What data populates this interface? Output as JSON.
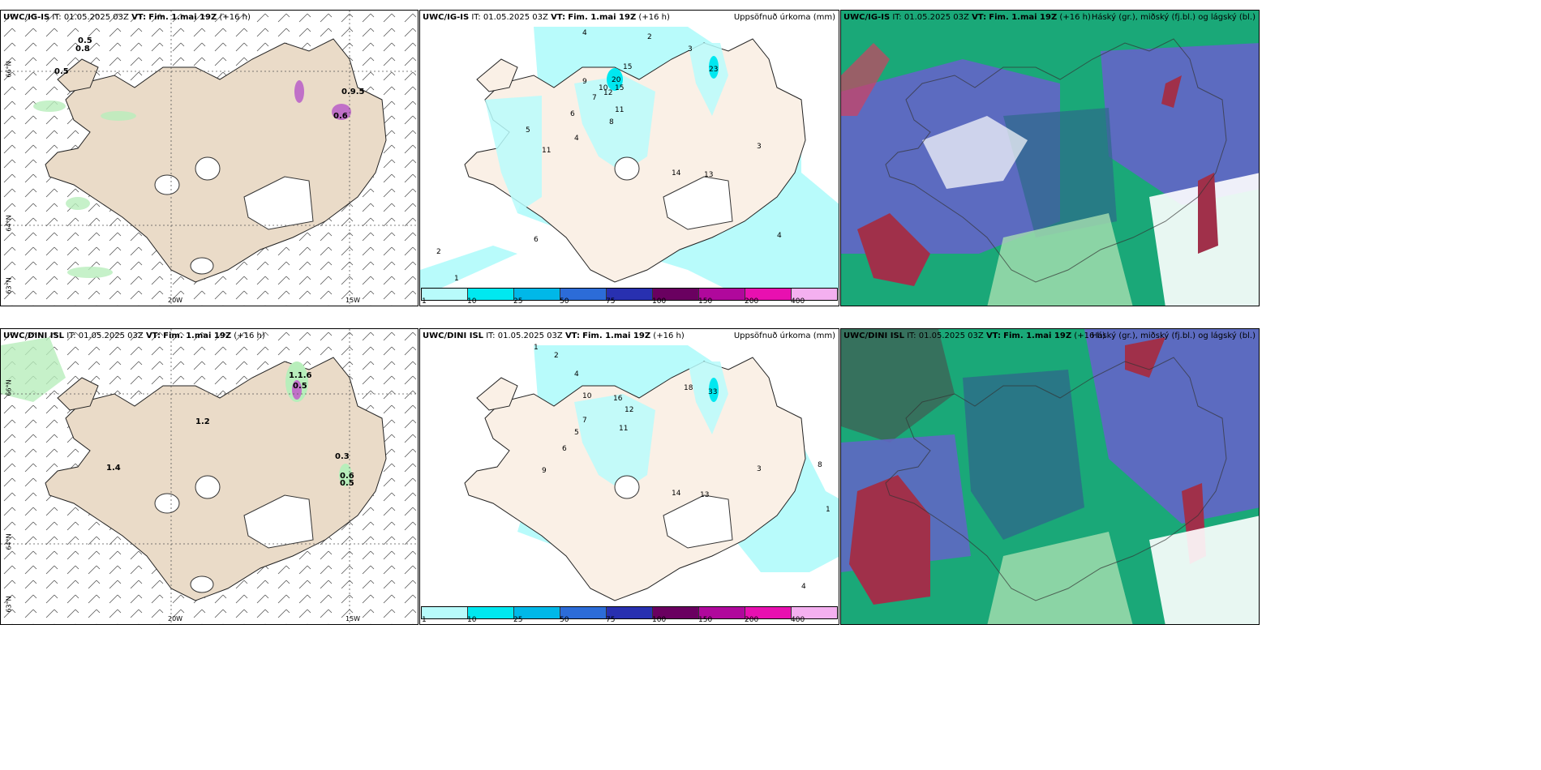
{
  "rows": [
    {
      "model": "UWC/IG-IS",
      "it": "IT: 01.05.2025 03Z",
      "vt_label": "VT:",
      "vt": "Fim. 1.mai 19Z",
      "lead": "(+16 h)",
      "wind_values": [
        "0.5",
        "0.8",
        "0.5",
        "0.9.5",
        "0.6"
      ],
      "precip_values": [
        "4",
        "2",
        "3",
        "23",
        "15",
        "20",
        "10",
        "12",
        "15",
        "11",
        "9",
        "7",
        "8",
        "4",
        "6",
        "5",
        "11",
        "14",
        "13",
        "3",
        "2",
        "1",
        "6",
        "4"
      ]
    },
    {
      "model": "UWC/DINI ISL",
      "it": "IT: 01.05.2025 03Z",
      "vt_label": "VT:",
      "vt": "Fim. 1.mai 19Z",
      "lead": "(+16 h)",
      "wind_values": [
        "1.1.6",
        "0.5",
        "1.2",
        "1.4",
        "0.3",
        "0.6",
        "0.5"
      ],
      "precip_values": [
        "1",
        "2",
        "4",
        "33",
        "18",
        "16",
        "10",
        "12",
        "11",
        "9",
        "7",
        "5",
        "6",
        "14",
        "13",
        "3",
        "8",
        "1",
        "4"
      ]
    }
  ],
  "precip_title": "Uppsöfnuð úrkoma (mm)",
  "cloud_title": "Háský (gr.), miðský (fj.bl.) og lágský (bl.)",
  "colorbar": {
    "ticks": [
      "1",
      "10",
      "25",
      "50",
      "75",
      "100",
      "150",
      "200",
      "400"
    ],
    "colors": [
      "#b8fbfb",
      "#00e8f0",
      "#00b8e8",
      "#2c6cd8",
      "#2830b0",
      "#6a0060",
      "#b0089c",
      "#e810b0",
      "#f4b0f0"
    ]
  },
  "axis": {
    "lat_top": "66°N",
    "lat_mid": "64°N",
    "lat_low": "63°N",
    "lon_left": "20W",
    "lon_right": "15W"
  },
  "colors": {
    "land": "#eadbc8",
    "precip_land": "#faf0e6",
    "light_green": "#b8eebb",
    "cloud_blue": "#6464c8",
    "cloud_green": "#1aa878",
    "cloud_red": "#a0304a"
  }
}
